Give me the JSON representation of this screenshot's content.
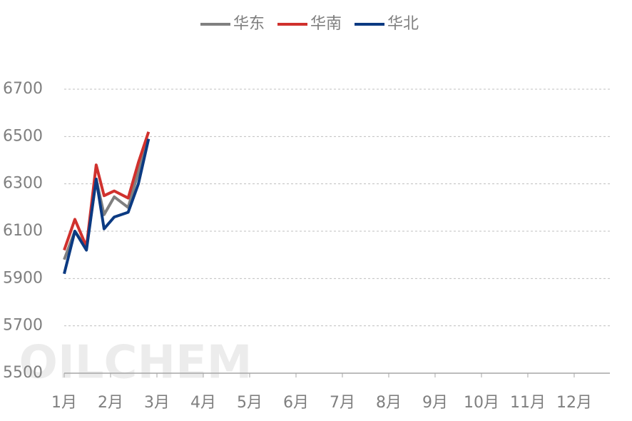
{
  "chart_data": {
    "type": "line",
    "watermark": "OILCHEM",
    "x": [
      1.0,
      1.23,
      1.48,
      1.69,
      1.86,
      2.08,
      2.38,
      2.6,
      2.82
    ],
    "series": [
      {
        "name": "华东",
        "color": "#808080",
        "values": [
          5980,
          6100,
          6030,
          6320,
          6170,
          6245,
          6200,
          6350,
          6490
        ]
      },
      {
        "name": "华南",
        "color": "#d0312d",
        "values": [
          6020,
          6150,
          6035,
          6380,
          6250,
          6270,
          6240,
          6390,
          6520
        ]
      },
      {
        "name": "华北",
        "color": "#0b3a82",
        "values": [
          5920,
          6100,
          6020,
          6320,
          6110,
          6160,
          6180,
          6300,
          6490
        ]
      }
    ],
    "xlim": [
      1,
      12.77
    ],
    "xticks": [
      {
        "value": 1,
        "label": "1月"
      },
      {
        "value": 2,
        "label": "2月"
      },
      {
        "value": 3,
        "label": "3月"
      },
      {
        "value": 4,
        "label": "4月"
      },
      {
        "value": 5,
        "label": "5月"
      },
      {
        "value": 6,
        "label": "6月"
      },
      {
        "value": 7,
        "label": "7月"
      },
      {
        "value": 8,
        "label": "8月"
      },
      {
        "value": 9,
        "label": "9月"
      },
      {
        "value": 10,
        "label": "10月"
      },
      {
        "value": 11,
        "label": "11月"
      },
      {
        "value": 12,
        "label": "12月"
      }
    ],
    "ylim": [
      5500,
      6700
    ],
    "yticks": [
      5500,
      5700,
      5900,
      6100,
      6300,
      6500,
      6700
    ],
    "grid": true,
    "legend": "top"
  }
}
